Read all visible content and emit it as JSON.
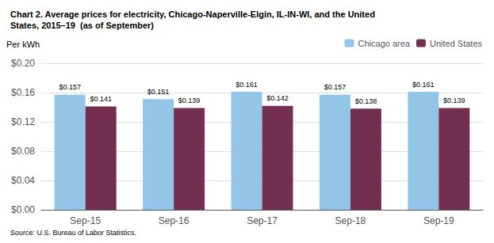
{
  "chart_data": {
    "type": "bar",
    "title": "Chart 2. Average prices for electricity, Chicago-Naperville-Elgin, IL-IN-WI, and the United\nStates, 2015–19  (as of September)",
    "ylabel": "Per kWh",
    "annotation": "Source: U.S. Bureau of Labor Statistics.",
    "categories": [
      "Sep-15",
      "Sep-16",
      "Sep-17",
      "Sep-18",
      "Sep-19"
    ],
    "series": [
      {
        "name": "Chicago area",
        "color": "#92C5E8",
        "values": [
          0.157,
          0.151,
          0.161,
          0.157,
          0.161
        ],
        "value_labels": [
          "$0.157",
          "$0.151",
          "$0.161",
          "$0.157",
          "$0.161"
        ]
      },
      {
        "name": "United States",
        "color": "#722F4F",
        "values": [
          0.141,
          0.139,
          0.142,
          0.138,
          0.139
        ],
        "value_labels": [
          "$0.141",
          "$0.139",
          "$0.142",
          "$0.138",
          "$0.139"
        ]
      }
    ],
    "ylim": [
      0.0,
      0.2
    ],
    "yticks": [
      {
        "value": 0.0,
        "label": "$0.00"
      },
      {
        "value": 0.04,
        "label": "$0.04"
      },
      {
        "value": 0.08,
        "label": "$0.08"
      },
      {
        "value": 0.12,
        "label": "$0.12"
      },
      {
        "value": 0.16,
        "label": "$0.16"
      },
      {
        "value": 0.2,
        "label": "$0.20"
      }
    ],
    "grid": true,
    "legend": "upper right",
    "data_labels": true
  }
}
